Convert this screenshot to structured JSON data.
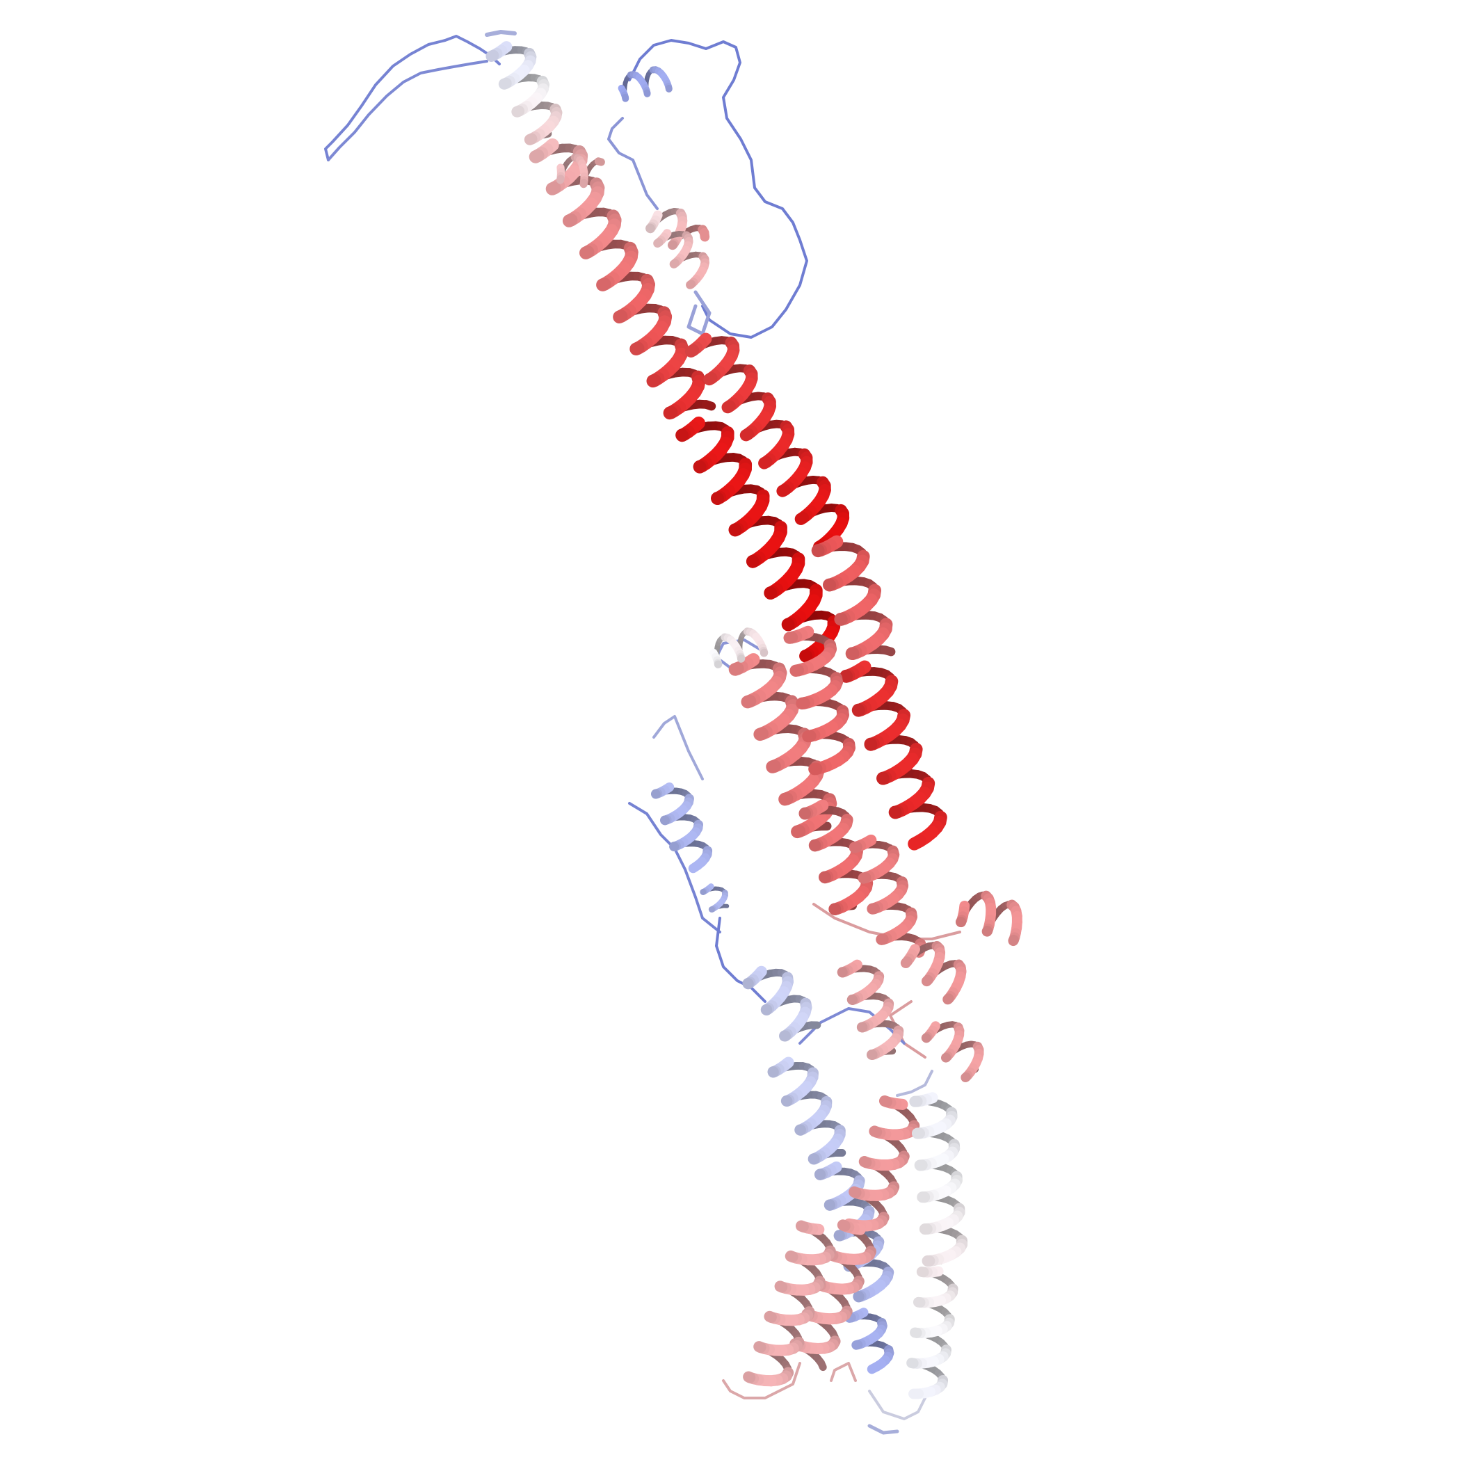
{
  "scene": {
    "subject": "protein-ribbon-structure",
    "background_color": "#ffffff",
    "coloring": {
      "scheme": "blue-white-red",
      "low_color": "#5a6de0",
      "mid_color": "#f2f2f5",
      "high_color": "#e00000"
    }
  }
}
